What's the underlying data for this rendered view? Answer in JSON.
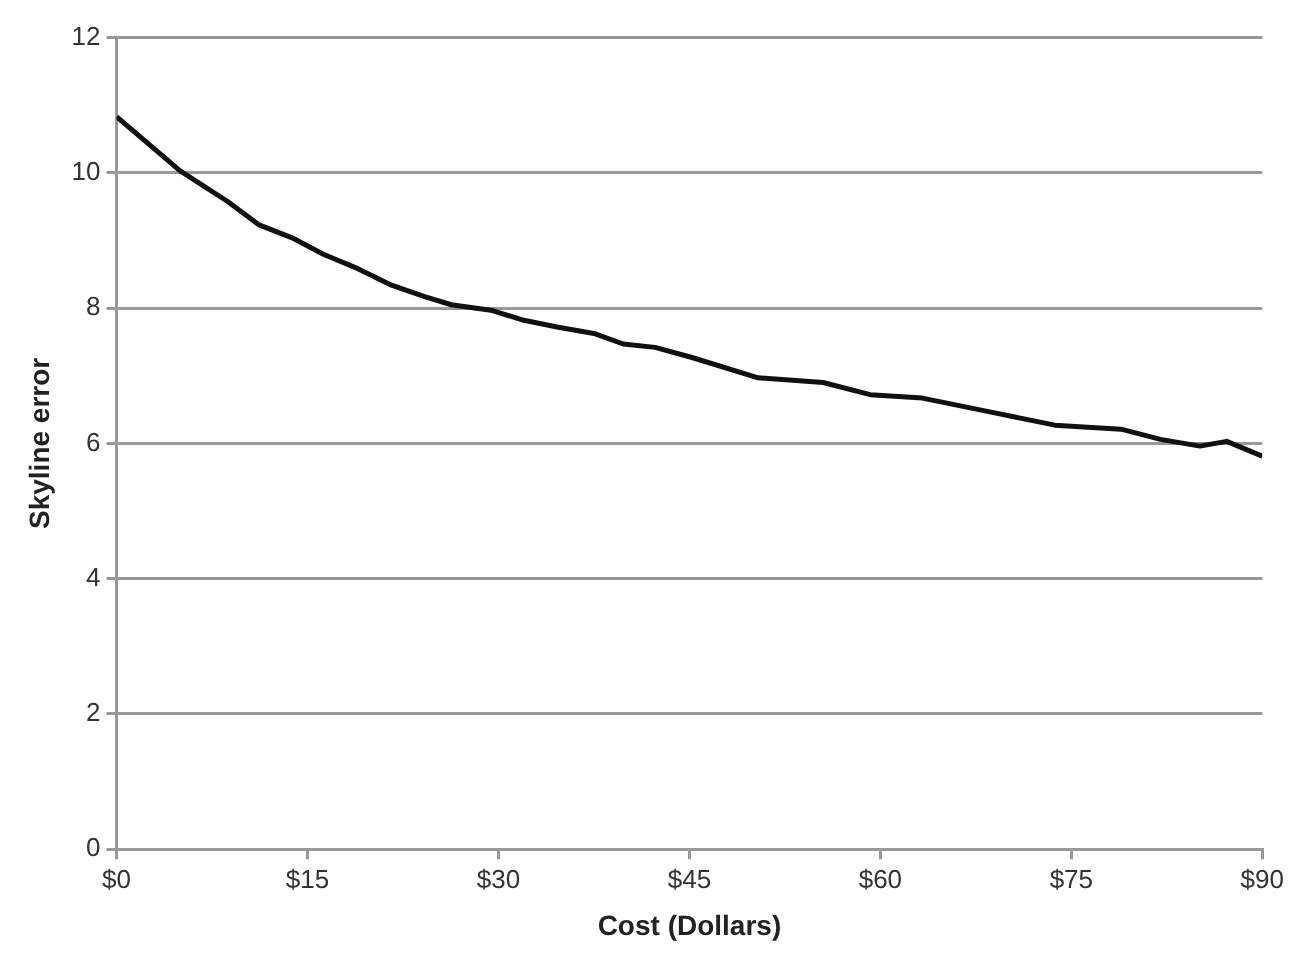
{
  "chart_data": {
    "type": "line",
    "xlabel": "Cost (Dollars)",
    "ylabel": "Skyline error",
    "x": [
      0,
      5,
      8.7,
      11.2,
      13.8,
      16.2,
      19,
      21.6,
      24.2,
      26.3,
      29.4,
      32,
      34.6,
      37.6,
      39.8,
      42.3,
      45.2,
      50.4,
      55.5,
      59.2,
      63.3,
      68.5,
      73.7,
      78.9,
      82,
      85.1,
      87.2,
      90
    ],
    "series": [
      {
        "color": "#111111",
        "values": [
          10.83,
          10.03,
          9.58,
          9.23,
          9.04,
          8.8,
          8.58,
          8.34,
          8.17,
          8.05,
          7.97,
          7.82,
          7.72,
          7.62,
          7.47,
          7.42,
          7.27,
          6.97,
          6.9,
          6.72,
          6.67,
          6.47,
          6.27,
          6.21,
          6.06,
          5.96,
          6.03,
          5.81
        ]
      }
    ],
    "xlim": [
      0,
      90
    ],
    "xticks": [
      {
        "value": 0,
        "label": "$0"
      },
      {
        "value": 15,
        "label": "$15"
      },
      {
        "value": 30,
        "label": "$30"
      },
      {
        "value": 45,
        "label": "$45"
      },
      {
        "value": 60,
        "label": "$60"
      },
      {
        "value": 75,
        "label": "$75"
      },
      {
        "value": 90,
        "label": "$90"
      }
    ],
    "ylim": [
      0,
      12
    ],
    "yticks": [
      0,
      2,
      4,
      6,
      8,
      10,
      12
    ],
    "grid": "y",
    "legend": false,
    "marker": "none",
    "line_style": "solid"
  }
}
